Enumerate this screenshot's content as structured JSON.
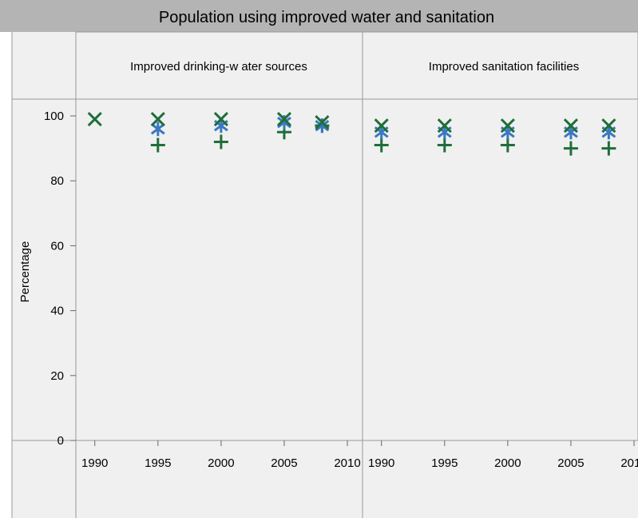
{
  "chart_data": {
    "type": "scatter",
    "title": "Population using improved water and sanitation",
    "ylabel": "Percentage",
    "ylim": [
      0,
      100
    ],
    "yticks": [
      0,
      20,
      40,
      60,
      80,
      100
    ],
    "xticks": [
      "1990",
      "1995",
      "2000",
      "2005",
      "2010"
    ],
    "xlim": [
      1988.5,
      2011.2
    ],
    "grid": false,
    "colors": {
      "marker_dark": "#1f6e3a",
      "marker_blue": "#3a78c2",
      "title_bg": "#b4b4b4",
      "panel_bg": "#f0f0f0",
      "border": "#999999"
    },
    "panels": [
      {
        "label": "Improved drinking-w ater sources",
        "series": [
          {
            "marker": "plus",
            "points": [
              [
                1995,
                91
              ],
              [
                2000,
                92
              ],
              [
                2005,
                95
              ],
              [
                2008,
                97
              ]
            ]
          },
          {
            "marker": "star",
            "points": [
              [
                1995,
                96
              ],
              [
                2000,
                97
              ],
              [
                2005,
                98
              ],
              [
                2008,
                97
              ]
            ]
          },
          {
            "marker": "x",
            "points": [
              [
                1990,
                99
              ],
              [
                1995,
                99
              ],
              [
                2000,
                99
              ],
              [
                2005,
                99
              ],
              [
                2008,
                98
              ]
            ]
          }
        ]
      },
      {
        "label": "Improved sanitation facilities",
        "series": [
          {
            "marker": "plus",
            "points": [
              [
                1990,
                91
              ],
              [
                1995,
                91
              ],
              [
                2000,
                91
              ],
              [
                2005,
                90
              ],
              [
                2008,
                90
              ]
            ]
          },
          {
            "marker": "star",
            "points": [
              [
                1990,
                95
              ],
              [
                1995,
                95
              ],
              [
                2000,
                95
              ],
              [
                2005,
                95
              ],
              [
                2008,
                95
              ]
            ]
          },
          {
            "marker": "x",
            "points": [
              [
                1990,
                97
              ],
              [
                1995,
                97
              ],
              [
                2000,
                97
              ],
              [
                2005,
                97
              ],
              [
                2008,
                97
              ]
            ]
          }
        ]
      }
    ]
  }
}
